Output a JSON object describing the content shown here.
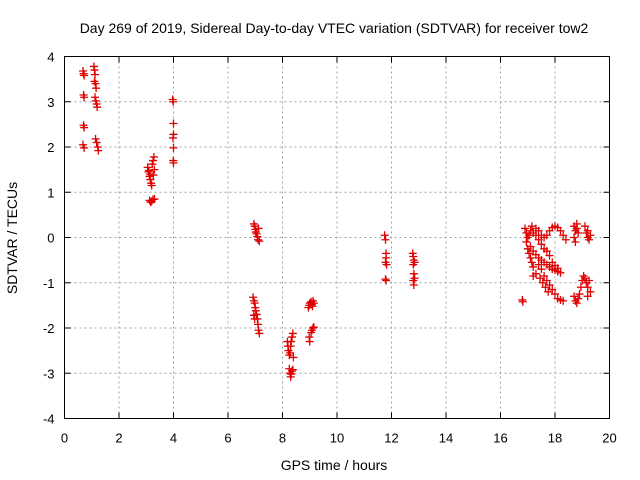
{
  "chart_data": {
    "type": "scatter",
    "title": "Day 269 of 2019, Sidereal Day-to-day VTEC variation (SDTVAR) for receiver tow2",
    "xlabel": "GPS time / hours",
    "ylabel": "SDTVAR / TECUs",
    "xlim": [
      0,
      20
    ],
    "ylim": [
      -4,
      4
    ],
    "xticks": [
      0,
      2,
      4,
      6,
      8,
      10,
      12,
      14,
      16,
      18,
      20
    ],
    "yticks": [
      -4,
      -3,
      -2,
      -1,
      0,
      1,
      2,
      3,
      4
    ],
    "grid": true,
    "marker": "+",
    "series": [
      {
        "name": "SDTVAR",
        "color": "#e00000",
        "points": [
          [
            0.68,
            3.68
          ],
          [
            0.7,
            3.62
          ],
          [
            0.72,
            3.58
          ],
          [
            0.7,
            3.15
          ],
          [
            0.72,
            3.1
          ],
          [
            0.7,
            2.48
          ],
          [
            0.72,
            2.43
          ],
          [
            0.68,
            2.05
          ],
          [
            0.72,
            1.98
          ],
          [
            1.08,
            3.78
          ],
          [
            1.1,
            3.7
          ],
          [
            1.12,
            3.6
          ],
          [
            1.1,
            3.45
          ],
          [
            1.14,
            3.4
          ],
          [
            1.16,
            3.3
          ],
          [
            1.12,
            3.1
          ],
          [
            1.15,
            3.02
          ],
          [
            1.18,
            2.95
          ],
          [
            1.2,
            2.88
          ],
          [
            1.14,
            2.18
          ],
          [
            1.18,
            2.1
          ],
          [
            1.22,
            2.0
          ],
          [
            1.24,
            1.92
          ],
          [
            3.05,
            1.55
          ],
          [
            3.08,
            1.45
          ],
          [
            3.12,
            1.35
          ],
          [
            3.15,
            1.28
          ],
          [
            3.18,
            1.2
          ],
          [
            3.2,
            1.15
          ],
          [
            3.1,
            1.48
          ],
          [
            3.14,
            1.4
          ],
          [
            3.22,
            1.62
          ],
          [
            3.25,
            1.7
          ],
          [
            3.28,
            1.78
          ],
          [
            3.3,
            1.5
          ],
          [
            3.26,
            1.38
          ],
          [
            3.12,
            0.82
          ],
          [
            3.16,
            0.78
          ],
          [
            3.2,
            0.8
          ],
          [
            3.25,
            0.84
          ],
          [
            3.3,
            0.85
          ],
          [
            3.97,
            3.05
          ],
          [
            3.99,
            3.0
          ],
          [
            4.0,
            2.52
          ],
          [
            4.0,
            2.28
          ],
          [
            3.98,
            2.2
          ],
          [
            4.0,
            1.98
          ],
          [
            3.99,
            1.7
          ],
          [
            4.0,
            1.65
          ],
          [
            6.95,
            0.3
          ],
          [
            6.98,
            0.25
          ],
          [
            7.0,
            0.18
          ],
          [
            7.02,
            0.12
          ],
          [
            7.05,
            0.08
          ],
          [
            7.08,
            0.02
          ],
          [
            7.1,
            -0.05
          ],
          [
            7.12,
            0.2
          ],
          [
            7.15,
            -0.08
          ],
          [
            6.92,
            -1.32
          ],
          [
            6.95,
            -1.4
          ],
          [
            6.98,
            -1.45
          ],
          [
            7.0,
            -1.55
          ],
          [
            7.02,
            -1.62
          ],
          [
            7.05,
            -1.7
          ],
          [
            7.08,
            -1.8
          ],
          [
            7.1,
            -1.92
          ],
          [
            7.12,
            -2.05
          ],
          [
            7.15,
            -2.12
          ],
          [
            6.95,
            -1.72
          ],
          [
            6.98,
            -1.8
          ],
          [
            8.18,
            -2.3
          ],
          [
            8.2,
            -2.4
          ],
          [
            8.22,
            -2.5
          ],
          [
            8.25,
            -2.6
          ],
          [
            8.28,
            -2.55
          ],
          [
            8.3,
            -2.4
          ],
          [
            8.32,
            -2.3
          ],
          [
            8.35,
            -2.2
          ],
          [
            8.38,
            -2.12
          ],
          [
            8.4,
            -2.65
          ],
          [
            8.25,
            -2.9
          ],
          [
            8.28,
            -3.0
          ],
          [
            8.3,
            -3.08
          ],
          [
            8.32,
            -3.02
          ],
          [
            8.35,
            -2.95
          ],
          [
            8.38,
            -2.92
          ],
          [
            8.95,
            -1.55
          ],
          [
            8.98,
            -1.5
          ],
          [
            9.0,
            -1.45
          ],
          [
            9.05,
            -1.42
          ],
          [
            9.08,
            -1.48
          ],
          [
            9.1,
            -1.52
          ],
          [
            9.12,
            -1.4
          ],
          [
            9.15,
            -1.45
          ],
          [
            8.98,
            -2.2
          ],
          [
            9.0,
            -2.3
          ],
          [
            9.05,
            -2.1
          ],
          [
            9.08,
            -2.05
          ],
          [
            9.12,
            -2.0
          ],
          [
            9.15,
            -1.98
          ],
          [
            11.75,
            0.05
          ],
          [
            11.78,
            -0.05
          ],
          [
            11.8,
            -0.35
          ],
          [
            11.8,
            -0.45
          ],
          [
            11.78,
            -0.55
          ],
          [
            11.82,
            -0.6
          ],
          [
            11.8,
            -0.95
          ],
          [
            11.78,
            -0.92
          ],
          [
            12.78,
            -0.35
          ],
          [
            12.8,
            -0.42
          ],
          [
            12.82,
            -0.5
          ],
          [
            12.85,
            -0.55
          ],
          [
            12.8,
            -0.6
          ],
          [
            12.82,
            -0.8
          ],
          [
            12.85,
            -0.9
          ],
          [
            12.8,
            -0.95
          ],
          [
            12.82,
            -1.05
          ],
          [
            16.8,
            -1.38
          ],
          [
            16.82,
            -1.42
          ],
          [
            16.9,
            0.2
          ],
          [
            16.95,
            0.1
          ],
          [
            17.0,
            0.0
          ],
          [
            16.95,
            -0.1
          ],
          [
            17.0,
            -0.25
          ],
          [
            17.05,
            -0.35
          ],
          [
            17.1,
            -0.45
          ],
          [
            17.15,
            -0.55
          ],
          [
            17.2,
            -0.65
          ],
          [
            17.05,
            0.05
          ],
          [
            17.1,
            0.15
          ],
          [
            17.15,
            0.25
          ],
          [
            17.1,
            -0.2
          ],
          [
            17.2,
            -0.3
          ],
          [
            17.3,
            -0.38
          ],
          [
            17.4,
            -0.45
          ],
          [
            17.5,
            -0.5
          ],
          [
            17.6,
            -0.55
          ],
          [
            17.7,
            -0.6
          ],
          [
            17.8,
            -0.65
          ],
          [
            17.9,
            -0.7
          ],
          [
            18.0,
            -0.72
          ],
          [
            18.1,
            -0.75
          ],
          [
            18.2,
            -0.78
          ],
          [
            17.2,
            0.1
          ],
          [
            17.3,
            0.05
          ],
          [
            17.4,
            -0.05
          ],
          [
            17.5,
            -0.15
          ],
          [
            17.6,
            -0.25
          ],
          [
            17.7,
            -0.3
          ],
          [
            17.8,
            -0.4
          ],
          [
            17.9,
            -0.55
          ],
          [
            18.0,
            -0.62
          ],
          [
            18.1,
            -0.68
          ],
          [
            17.3,
            0.2
          ],
          [
            17.4,
            0.15
          ],
          [
            17.5,
            0.05
          ],
          [
            17.6,
            0.0
          ],
          [
            17.7,
            0.05
          ],
          [
            17.8,
            0.15
          ],
          [
            17.9,
            0.22
          ],
          [
            18.0,
            0.25
          ],
          [
            18.1,
            0.22
          ],
          [
            18.2,
            0.15
          ],
          [
            18.3,
            0.05
          ],
          [
            18.4,
            -0.05
          ],
          [
            17.4,
            -0.6
          ],
          [
            17.5,
            -0.7
          ],
          [
            17.6,
            -0.85
          ],
          [
            17.7,
            -0.95
          ],
          [
            17.8,
            -1.05
          ],
          [
            17.9,
            -1.15
          ],
          [
            18.0,
            -1.25
          ],
          [
            18.1,
            -1.35
          ],
          [
            18.2,
            -1.38
          ],
          [
            18.3,
            -1.4
          ],
          [
            17.2,
            -0.85
          ],
          [
            17.3,
            -0.8
          ],
          [
            17.45,
            -0.9
          ],
          [
            17.55,
            -1.0
          ],
          [
            17.65,
            -1.1
          ],
          [
            17.75,
            -1.2
          ],
          [
            18.7,
            0.25
          ],
          [
            18.75,
            0.15
          ],
          [
            18.8,
            0.3
          ],
          [
            18.7,
            0.0
          ],
          [
            18.75,
            -0.1
          ],
          [
            18.8,
            0.2
          ],
          [
            18.85,
            0.1
          ],
          [
            18.7,
            -1.3
          ],
          [
            18.75,
            -1.4
          ],
          [
            18.8,
            -1.45
          ],
          [
            18.85,
            -1.35
          ],
          [
            18.9,
            -1.25
          ],
          [
            18.95,
            -1.1
          ],
          [
            19.0,
            -0.95
          ],
          [
            19.05,
            -0.85
          ],
          [
            19.1,
            0.25
          ],
          [
            19.15,
            0.1
          ],
          [
            19.2,
            0.0
          ],
          [
            19.25,
            -0.05
          ],
          [
            19.3,
            0.05
          ],
          [
            19.2,
            0.15
          ],
          [
            19.1,
            -0.9
          ],
          [
            19.15,
            -1.0
          ],
          [
            19.2,
            -1.1
          ],
          [
            19.25,
            -0.95
          ],
          [
            19.3,
            -1.2
          ],
          [
            19.2,
            -1.3
          ]
        ]
      }
    ]
  }
}
